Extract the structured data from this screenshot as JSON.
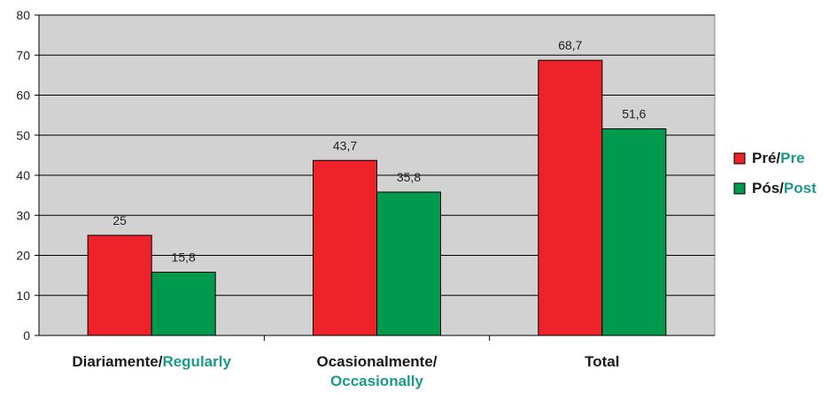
{
  "chart_data": {
    "type": "bar",
    "ylim": [
      0,
      80
    ],
    "yticks": [
      0,
      10,
      20,
      30,
      40,
      50,
      60,
      70,
      80
    ],
    "grid": true,
    "legend_position": "right",
    "categories": [
      {
        "pt": "Diariamente/",
        "en": "Regularly"
      },
      {
        "pt": "Ocasionalmente/",
        "en": "Occasionally"
      },
      {
        "pt": "Total",
        "en": ""
      }
    ],
    "series": [
      {
        "name_pt": "Pré/",
        "name_en": "Pre",
        "values": [
          25,
          43.7,
          68.7
        ],
        "labels": [
          "25",
          "43,7",
          "68,7"
        ]
      },
      {
        "name_pt": "Pós/",
        "name_en": "Post",
        "values": [
          15.8,
          35.8,
          51.6
        ],
        "labels": [
          "15,8",
          "35,8",
          "51,6"
        ]
      }
    ]
  },
  "colors": {
    "pre": "#ee2229",
    "post": "#009a4e",
    "english_text": "#1a9a8a",
    "plot_background": "#d2d2d2",
    "grid": "#000000"
  }
}
